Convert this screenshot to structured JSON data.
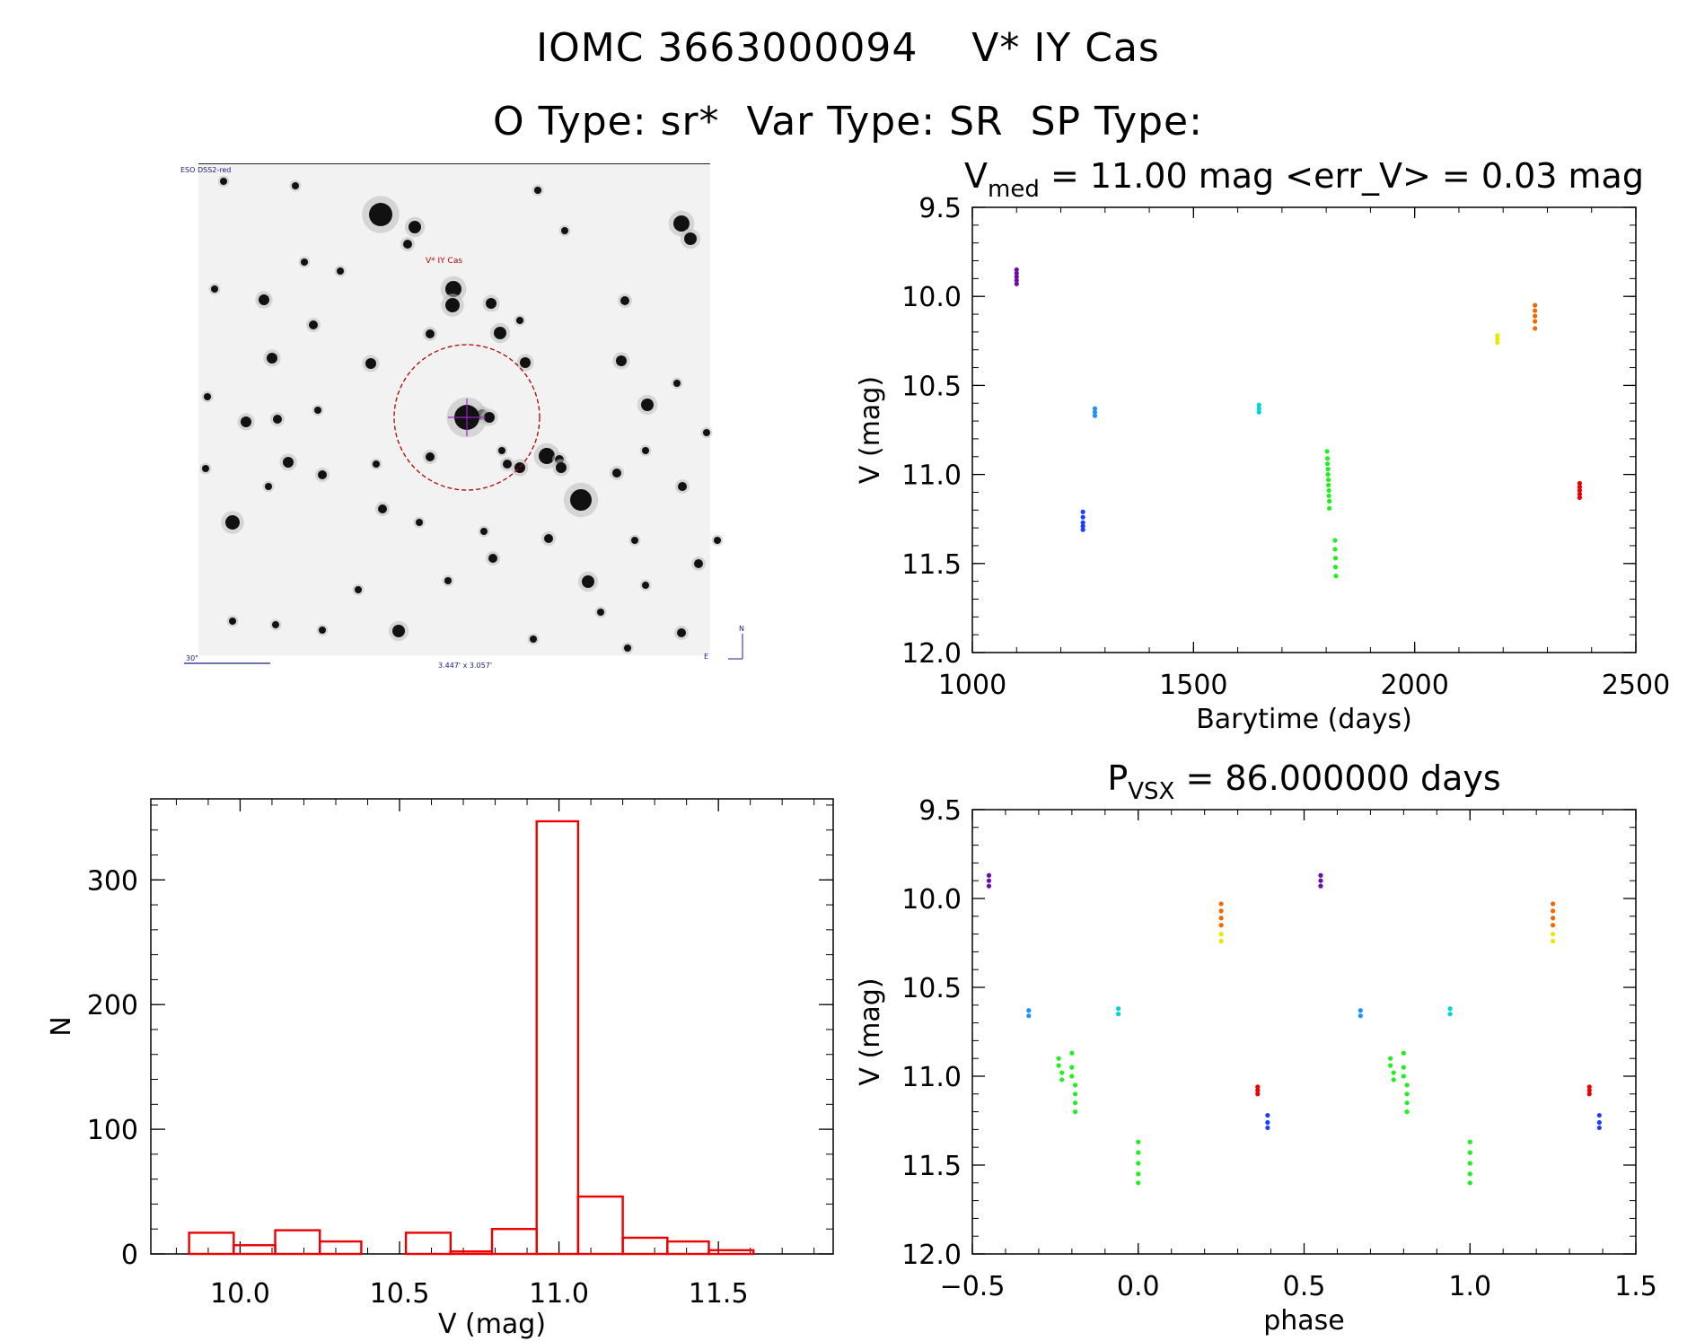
{
  "header": {
    "title_line1": "IOMC 3663000094    V* IY Cas",
    "title_line2": "O Type: sr*  Var Type: SR  SP Type:"
  },
  "finder_chart": {
    "survey_label": "ESO DSS2-red",
    "target_label": "V* IY Cas",
    "scale_label": "30\"",
    "fov_label": "3.447' x 3.057'",
    "east_label": "E",
    "north_label": "N",
    "circle_color": "#b30000",
    "label_color": "#1a237e"
  },
  "chart_data": [
    {
      "id": "light_curve",
      "type": "scatter",
      "title_main": "V",
      "title_sub": "med",
      "title_rest": " = 11.00 mag <err_V> = 0.03 mag",
      "xlabel": "Barytime (days)",
      "ylabel": "V (mag)",
      "xlim": [
        1000,
        2500
      ],
      "ylim": [
        12.0,
        9.5
      ],
      "y_inverted": true,
      "xticks": [
        1000,
        1500,
        2000,
        2500
      ],
      "xtick_labels": [
        "1000",
        "1500",
        "2000",
        "2500"
      ],
      "yticks": [
        9.5,
        10.0,
        10.5,
        11.0,
        11.5,
        12.0
      ],
      "ytick_labels": [
        "9.5",
        "10.0",
        "10.5",
        "11.0",
        "11.5",
        "12.0"
      ],
      "series": [
        {
          "name": "purple",
          "color": "#6a0dad",
          "points": [
            [
              1100,
              9.85
            ],
            [
              1100,
              9.87
            ],
            [
              1100,
              9.89
            ],
            [
              1100,
              9.91
            ],
            [
              1100,
              9.93
            ]
          ]
        },
        {
          "name": "blue",
          "color": "#1f3cff",
          "points": [
            [
              1250,
              11.21
            ],
            [
              1250,
              11.24
            ],
            [
              1250,
              11.27
            ],
            [
              1250,
              11.29
            ],
            [
              1250,
              11.31
            ]
          ]
        },
        {
          "name": "azure",
          "color": "#1e90ff",
          "points": [
            [
              1277,
              10.63
            ],
            [
              1277,
              10.65
            ],
            [
              1277,
              10.67
            ]
          ]
        },
        {
          "name": "cyan",
          "color": "#00d4d4",
          "points": [
            [
              1648,
              10.61
            ],
            [
              1648,
              10.63
            ],
            [
              1648,
              10.65
            ]
          ]
        },
        {
          "name": "green_main",
          "color": "#22ee22",
          "points": [
            [
              1802,
              10.87
            ],
            [
              1803,
              10.91
            ],
            [
              1803,
              10.94
            ],
            [
              1804,
              10.97
            ],
            [
              1804,
              11.0
            ],
            [
              1805,
              11.03
            ],
            [
              1805,
              11.06
            ],
            [
              1806,
              11.09
            ],
            [
              1806,
              11.12
            ],
            [
              1807,
              11.15
            ],
            [
              1807,
              11.19
            ]
          ]
        },
        {
          "name": "green_faint",
          "color": "#22ee22",
          "points": [
            [
              1820,
              11.37
            ],
            [
              1820,
              11.42
            ],
            [
              1821,
              11.47
            ],
            [
              1821,
              11.52
            ],
            [
              1822,
              11.57
            ]
          ]
        },
        {
          "name": "yellow",
          "color": "#e8e800",
          "points": [
            [
              2187,
              10.22
            ],
            [
              2187,
              10.24
            ],
            [
              2187,
              10.26
            ]
          ]
        },
        {
          "name": "orange",
          "color": "#ee6a00",
          "points": [
            [
              2272,
              10.05
            ],
            [
              2272,
              10.08
            ],
            [
              2272,
              10.11
            ],
            [
              2272,
              10.14
            ],
            [
              2272,
              10.18
            ]
          ]
        },
        {
          "name": "red",
          "color": "#ee0000",
          "points": [
            [
              2373,
              11.05
            ],
            [
              2373,
              11.07
            ],
            [
              2373,
              11.09
            ],
            [
              2373,
              11.11
            ],
            [
              2373,
              11.13
            ]
          ]
        }
      ]
    },
    {
      "id": "phase_curve",
      "type": "scatter",
      "title_main": "P",
      "title_sub": "VSX",
      "title_rest": " = 86.000000 days",
      "xlabel": "phase",
      "ylabel": "V (mag)",
      "xlim": [
        -0.5,
        1.5
      ],
      "ylim": [
        12.0,
        9.5
      ],
      "y_inverted": true,
      "xticks": [
        -0.5,
        0.0,
        0.5,
        1.0,
        1.5
      ],
      "xtick_labels": [
        "−0.5",
        "0.0",
        "0.5",
        "1.0",
        "1.5"
      ],
      "yticks": [
        9.5,
        10.0,
        10.5,
        11.0,
        11.5,
        12.0
      ],
      "ytick_labels": [
        "9.5",
        "10.0",
        "10.5",
        "11.0",
        "11.5",
        "12.0"
      ],
      "series": [
        {
          "name": "purple",
          "color": "#6a0dad",
          "points": [
            [
              -0.45,
              9.87
            ],
            [
              -0.45,
              9.9
            ],
            [
              -0.45,
              9.93
            ],
            [
              0.55,
              9.87
            ],
            [
              0.55,
              9.9
            ],
            [
              0.55,
              9.93
            ]
          ]
        },
        {
          "name": "azure",
          "color": "#1e90ff",
          "points": [
            [
              -0.33,
              10.63
            ],
            [
              -0.33,
              10.66
            ],
            [
              0.67,
              10.63
            ],
            [
              0.67,
              10.66
            ]
          ]
        },
        {
          "name": "cyan",
          "color": "#00d4d4",
          "points": [
            [
              -0.06,
              10.62
            ],
            [
              -0.06,
              10.65
            ],
            [
              0.94,
              10.62
            ],
            [
              0.94,
              10.65
            ]
          ]
        },
        {
          "name": "green_a",
          "color": "#22ee22",
          "points": [
            [
              -0.24,
              10.9
            ],
            [
              -0.24,
              10.94
            ],
            [
              -0.23,
              10.98
            ],
            [
              -0.23,
              11.02
            ],
            [
              0.76,
              10.9
            ],
            [
              0.76,
              10.94
            ],
            [
              0.77,
              10.98
            ],
            [
              0.77,
              11.02
            ]
          ]
        },
        {
          "name": "green_b",
          "color": "#22ee22",
          "points": [
            [
              -0.2,
              10.87
            ],
            [
              -0.2,
              10.95
            ],
            [
              -0.2,
              11.0
            ],
            [
              -0.19,
              11.05
            ],
            [
              -0.19,
              11.1
            ],
            [
              -0.19,
              11.15
            ],
            [
              -0.19,
              11.2
            ],
            [
              0.8,
              10.87
            ],
            [
              0.8,
              10.95
            ],
            [
              0.8,
              11.0
            ],
            [
              0.81,
              11.05
            ],
            [
              0.81,
              11.1
            ],
            [
              0.81,
              11.15
            ],
            [
              0.81,
              11.2
            ]
          ]
        },
        {
          "name": "green_faint",
          "color": "#22ee22",
          "points": [
            [
              0.0,
              11.37
            ],
            [
              0.0,
              11.43
            ],
            [
              0.0,
              11.49
            ],
            [
              0.0,
              11.55
            ],
            [
              0.0,
              11.6
            ],
            [
              1.0,
              11.37
            ],
            [
              1.0,
              11.43
            ],
            [
              1.0,
              11.49
            ],
            [
              1.0,
              11.55
            ],
            [
              1.0,
              11.6
            ]
          ]
        },
        {
          "name": "orange",
          "color": "#ee6a00",
          "points": [
            [
              0.25,
              10.03
            ],
            [
              0.25,
              10.07
            ],
            [
              0.25,
              10.11
            ],
            [
              0.25,
              10.15
            ],
            [
              1.25,
              10.03
            ],
            [
              1.25,
              10.07
            ],
            [
              1.25,
              10.11
            ],
            [
              1.25,
              10.15
            ]
          ]
        },
        {
          "name": "yellow",
          "color": "#e8e800",
          "points": [
            [
              0.25,
              10.2
            ],
            [
              0.25,
              10.24
            ],
            [
              1.25,
              10.2
            ],
            [
              1.25,
              10.24
            ]
          ]
        },
        {
          "name": "red",
          "color": "#ee0000",
          "points": [
            [
              0.36,
              11.06
            ],
            [
              0.36,
              11.08
            ],
            [
              0.36,
              11.1
            ],
            [
              1.36,
              11.06
            ],
            [
              1.36,
              11.08
            ],
            [
              1.36,
              11.1
            ]
          ]
        },
        {
          "name": "blue",
          "color": "#1f3cff",
          "points": [
            [
              0.39,
              11.22
            ],
            [
              0.39,
              11.26
            ],
            [
              0.39,
              11.29
            ],
            [
              1.39,
              11.22
            ],
            [
              1.39,
              11.26
            ],
            [
              1.39,
              11.29
            ]
          ]
        }
      ]
    },
    {
      "id": "histogram",
      "type": "bar",
      "title": "",
      "xlabel": "V (mag)",
      "ylabel": "N",
      "xlim": [
        9.72,
        11.86
      ],
      "ylim": [
        0,
        365
      ],
      "bar_color": "#ee0000",
      "bin_edges": [
        9.84,
        9.98,
        10.11,
        10.25,
        10.38,
        10.52,
        10.66,
        10.79,
        10.93,
        11.06,
        11.2,
        11.34,
        11.47,
        11.61
      ],
      "values": [
        17,
        7,
        19,
        10,
        0,
        17,
        2,
        20,
        347,
        46,
        13,
        10,
        3
      ],
      "xticks": [
        10.0,
        10.5,
        11.0,
        11.5
      ],
      "xtick_labels": [
        "10.0",
        "10.5",
        "11.0",
        "11.5"
      ],
      "yticks": [
        0,
        100,
        200,
        300
      ],
      "ytick_labels": [
        "0",
        "100",
        "200",
        "300"
      ]
    }
  ]
}
